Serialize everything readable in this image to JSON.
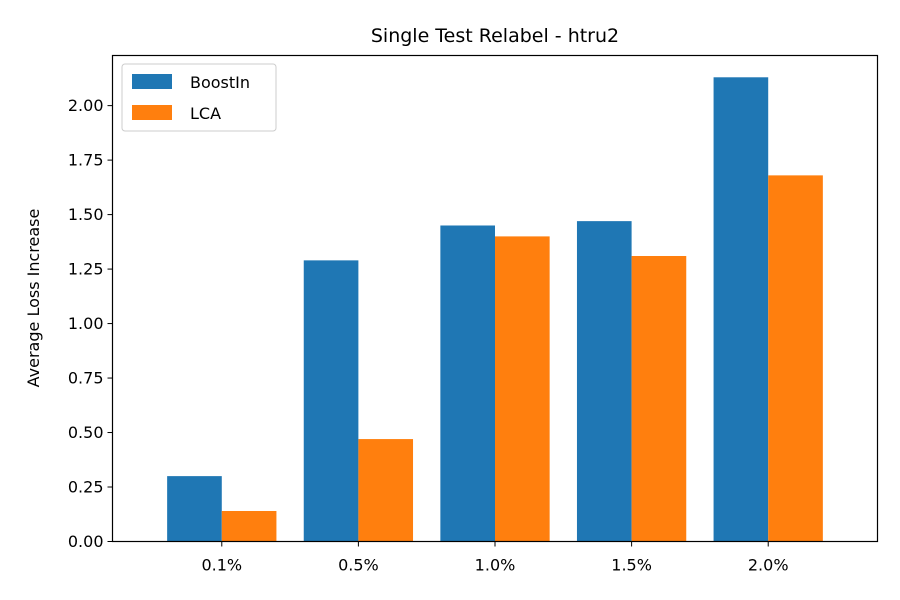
{
  "chart_data": {
    "type": "bar",
    "title": "Single Test Relabel - htru2",
    "xlabel": "",
    "ylabel": "Average Loss Increase",
    "categories": [
      "0.1%",
      "0.5%",
      "1.0%",
      "1.5%",
      "2.0%"
    ],
    "series": [
      {
        "name": "BoostIn",
        "color": "#1f77b4",
        "values": [
          0.3,
          1.29,
          1.45,
          1.47,
          2.13
        ]
      },
      {
        "name": "LCA",
        "color": "#ff7f0e",
        "values": [
          0.14,
          0.47,
          1.4,
          1.31,
          1.68
        ]
      }
    ],
    "ylim": [
      0,
      2.23
    ],
    "yticks": [
      "0.00",
      "0.25",
      "0.50",
      "0.75",
      "1.00",
      "1.25",
      "1.50",
      "1.75",
      "2.00"
    ],
    "grid": false,
    "legend": "top-left"
  }
}
